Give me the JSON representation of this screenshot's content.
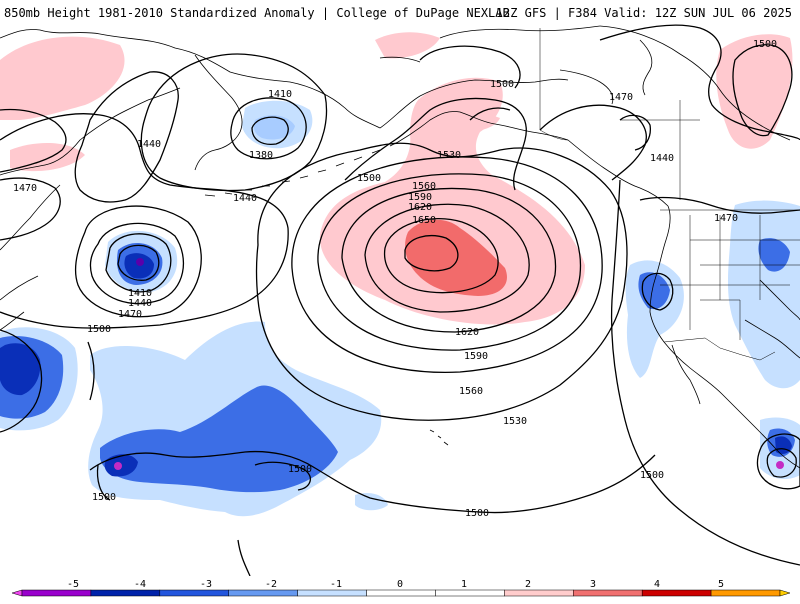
{
  "header": {
    "left_title": "850mb Height 1981-2010 Standardized Anomaly | College of DuPage NEXLAB",
    "right_title": "12Z GFS | F384 Valid: 12Z SUN JUL 06 2025"
  },
  "contour_labels": {
    "l1410_top": "1410",
    "l1380": "1380",
    "l1440_a": "1440",
    "l1440_b": "1440",
    "l1470_left": "1470",
    "l1500_top": "1500",
    "l1500_ak": "1500",
    "l1530_ak": "1530",
    "l1560_c": "1560",
    "l1590_c": "1590",
    "l1620_c": "1620",
    "l1650": "1650",
    "l1620_s": "1620",
    "l1590_s": "1590",
    "l1560_s": "1560",
    "l1530_s": "1530",
    "l1410_low": "1410",
    "l1440_low": "1440",
    "l1470_low": "1470",
    "l1500_low": "1500",
    "l1500_mid": "1500",
    "l1500_sw": "1500",
    "l1500_bot": "1500",
    "l1500_ne": "1500",
    "l1470_ne": "1470",
    "l1440_ne": "1440",
    "l1470_us": "1470",
    "l1500_e": "1500"
  },
  "colorbar": {
    "ticks": [
      "-5",
      "-4",
      "-3",
      "-2",
      "-1",
      "0",
      "1",
      "2",
      "3",
      "4",
      "5"
    ],
    "colors": [
      "#9900cc",
      "#0022aa",
      "#2255dd",
      "#6699f0",
      "#c6e0ff",
      "#ffffff",
      "#ffffff",
      "#ffcccc",
      "#f07070",
      "#cc0000",
      "#ff9900"
    ],
    "end_left_color": "#ee44ee",
    "end_right_color": "#ffcc00"
  },
  "colors": {
    "neg1": "#c6e0ff",
    "neg2": "#3c6ee6",
    "neg3": "#0a2fb8",
    "neg4": "#5a00aa",
    "pos1": "#ffc9cf",
    "pos2": "#f26b6b",
    "contour": "#000000",
    "coast": "#000000",
    "border": "#000000"
  }
}
